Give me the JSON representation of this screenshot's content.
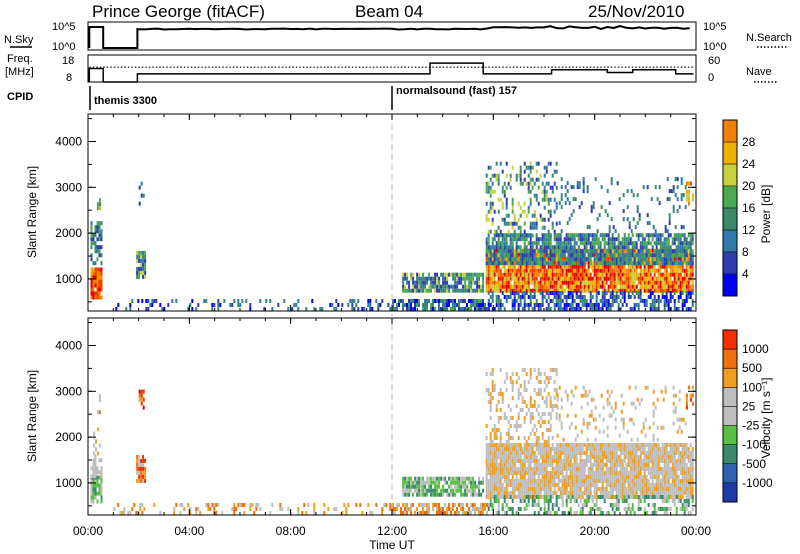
{
  "header": {
    "radar": "Prince George (fitACF)",
    "beam": "Beam 04",
    "date": "25/Nov/2010"
  },
  "panels": {
    "nsky_label": "N.Sky",
    "nsky_ticks": [
      "10^5",
      "10^0"
    ],
    "nsearch_label": "N.Search",
    "nsearch_ticks": [
      "10^5",
      "10^0"
    ],
    "freq_label_1": "Freq.",
    "freq_label_2": "[MHz]",
    "freq_ticks": [
      "18",
      "8"
    ],
    "nave_label": "Nave",
    "nave_ticks": [
      "60",
      "0"
    ],
    "cpid_label": "CPID",
    "cpid_1": "themis 3300",
    "cpid_2": "normalsound (fast) 157"
  },
  "axes": {
    "ylabel": "Slant Range [km]",
    "yticks": [
      "1000",
      "2000",
      "3000",
      "4000"
    ],
    "xticks": [
      "00:00",
      "04:00",
      "08:00",
      "12:00",
      "16:00",
      "20:00",
      "00:00"
    ],
    "xlabel": "Time UT"
  },
  "colorbars": {
    "power": {
      "label": "Power [dB]",
      "ticks": [
        "4",
        "8",
        "12",
        "16",
        "20",
        "24",
        "28"
      ],
      "colors": [
        "#0000ff",
        "#2e3eb0",
        "#2f7aa8",
        "#3a8a6a",
        "#4aaa50",
        "#c8d040",
        "#f0b000",
        "#f08000",
        "#ef4000",
        "#e00000"
      ]
    },
    "velocity": {
      "label": "Velocity [m s⁻¹]",
      "ticks": [
        "1000",
        "500",
        "100",
        "25",
        "-25",
        "-100",
        "-500",
        "-1000"
      ],
      "colors": [
        "#1c3aa8",
        "#2e5fb0",
        "#3a8a6a",
        "#56c040",
        "#bdbdbd",
        "#bdbdbd",
        "#f0a020",
        "#f07010",
        "#f03000",
        "#e00000"
      ]
    }
  },
  "chart_data": {
    "type": "heatmap",
    "x_unit": "hours UT",
    "xlim": [
      0,
      24
    ],
    "ylim": [
      300,
      4600
    ],
    "grid": false,
    "power_blobs": [
      {
        "t0": 0.1,
        "t1": 0.55,
        "r0": 550,
        "r1": 1200,
        "dens": 0.95,
        "c": [
          6,
          9
        ]
      },
      {
        "t0": 0.1,
        "t1": 0.5,
        "r0": 1300,
        "r1": 2200,
        "dens": 0.6,
        "c": [
          1,
          4
        ]
      },
      {
        "t0": 0.35,
        "t1": 0.5,
        "r0": 2500,
        "r1": 2900,
        "dens": 0.6,
        "c": [
          3,
          6
        ]
      },
      {
        "t0": 1.9,
        "t1": 2.25,
        "r0": 1000,
        "r1": 1600,
        "dens": 0.9,
        "c": [
          1,
          5
        ]
      },
      {
        "t0": 2.0,
        "t1": 2.2,
        "r0": 2600,
        "r1": 3100,
        "dens": 0.5,
        "c": [
          1,
          4
        ]
      },
      {
        "t0": 1.0,
        "t1": 12.0,
        "r0": 300,
        "r1": 500,
        "dens": 0.22,
        "c": [
          0,
          3
        ]
      },
      {
        "t0": 12.0,
        "t1": 15.8,
        "r0": 300,
        "r1": 550,
        "dens": 0.75,
        "c": [
          0,
          4
        ]
      },
      {
        "t0": 12.4,
        "t1": 15.6,
        "r0": 700,
        "r1": 1050,
        "dens": 0.85,
        "c": [
          1,
          5
        ]
      },
      {
        "t0": 15.7,
        "t1": 23.9,
        "r0": 700,
        "r1": 1600,
        "dens": 0.95,
        "c": [
          5,
          9
        ]
      },
      {
        "t0": 15.7,
        "t1": 23.9,
        "r0": 1300,
        "r1": 1950,
        "dens": 0.8,
        "c": [
          1,
          4
        ]
      },
      {
        "t0": 15.7,
        "t1": 23.9,
        "r0": 300,
        "r1": 650,
        "dens": 0.6,
        "c": [
          0,
          3
        ]
      },
      {
        "t0": 15.7,
        "t1": 18.5,
        "r0": 1900,
        "r1": 3500,
        "dens": 0.28,
        "c": [
          1,
          5
        ]
      },
      {
        "t0": 18.5,
        "t1": 23.6,
        "r0": 2000,
        "r1": 3200,
        "dens": 0.15,
        "c": [
          1,
          3
        ]
      },
      {
        "t0": 23.6,
        "t1": 23.9,
        "r0": 2600,
        "r1": 3100,
        "dens": 0.5,
        "c": [
          5,
          8
        ]
      }
    ],
    "velocity_blobs": [
      {
        "t0": 0.1,
        "t1": 0.55,
        "r0": 550,
        "r1": 1100,
        "dens": 0.9,
        "c": [
          2,
          4
        ]
      },
      {
        "t0": 0.1,
        "t1": 0.55,
        "r0": 1100,
        "r1": 1600,
        "dens": 0.55,
        "c": [
          4,
          5
        ]
      },
      {
        "t0": 0.2,
        "t1": 0.5,
        "r0": 1600,
        "r1": 2200,
        "dens": 0.35,
        "c": [
          4,
          6
        ]
      },
      {
        "t0": 0.35,
        "t1": 0.5,
        "r0": 2500,
        "r1": 2900,
        "dens": 0.5,
        "c": [
          4,
          7
        ]
      },
      {
        "t0": 1.9,
        "t1": 2.25,
        "r0": 1000,
        "r1": 1600,
        "dens": 0.9,
        "c": [
          5,
          8
        ]
      },
      {
        "t0": 2.0,
        "t1": 2.2,
        "r0": 2600,
        "r1": 3100,
        "dens": 0.5,
        "c": [
          6,
          9
        ]
      },
      {
        "t0": 1.0,
        "t1": 12.0,
        "r0": 300,
        "r1": 550,
        "dens": 0.22,
        "c": [
          5,
          7
        ]
      },
      {
        "t0": 12.0,
        "t1": 15.8,
        "r0": 300,
        "r1": 550,
        "dens": 0.7,
        "c": [
          5,
          7
        ]
      },
      {
        "t0": 12.4,
        "t1": 15.6,
        "r0": 700,
        "r1": 1050,
        "dens": 0.85,
        "c": [
          2,
          4
        ]
      },
      {
        "t0": 15.7,
        "t1": 23.9,
        "r0": 650,
        "r1": 1850,
        "dens": 0.93,
        "c": [
          4,
          6
        ]
      },
      {
        "t0": 15.7,
        "t1": 23.9,
        "r0": 300,
        "r1": 650,
        "dens": 0.5,
        "c": [
          2,
          4
        ]
      },
      {
        "t0": 15.7,
        "t1": 18.5,
        "r0": 1850,
        "r1": 3500,
        "dens": 0.3,
        "c": [
          4,
          6
        ]
      },
      {
        "t0": 18.5,
        "t1": 23.6,
        "r0": 1900,
        "r1": 3100,
        "dens": 0.15,
        "c": [
          4,
          6
        ]
      },
      {
        "t0": 23.6,
        "t1": 23.9,
        "r0": 2600,
        "r1": 3100,
        "dens": 0.5,
        "c": [
          6,
          8
        ]
      }
    ],
    "cpid_change_time": 12.0,
    "dashed_line_time": 12.0
  }
}
